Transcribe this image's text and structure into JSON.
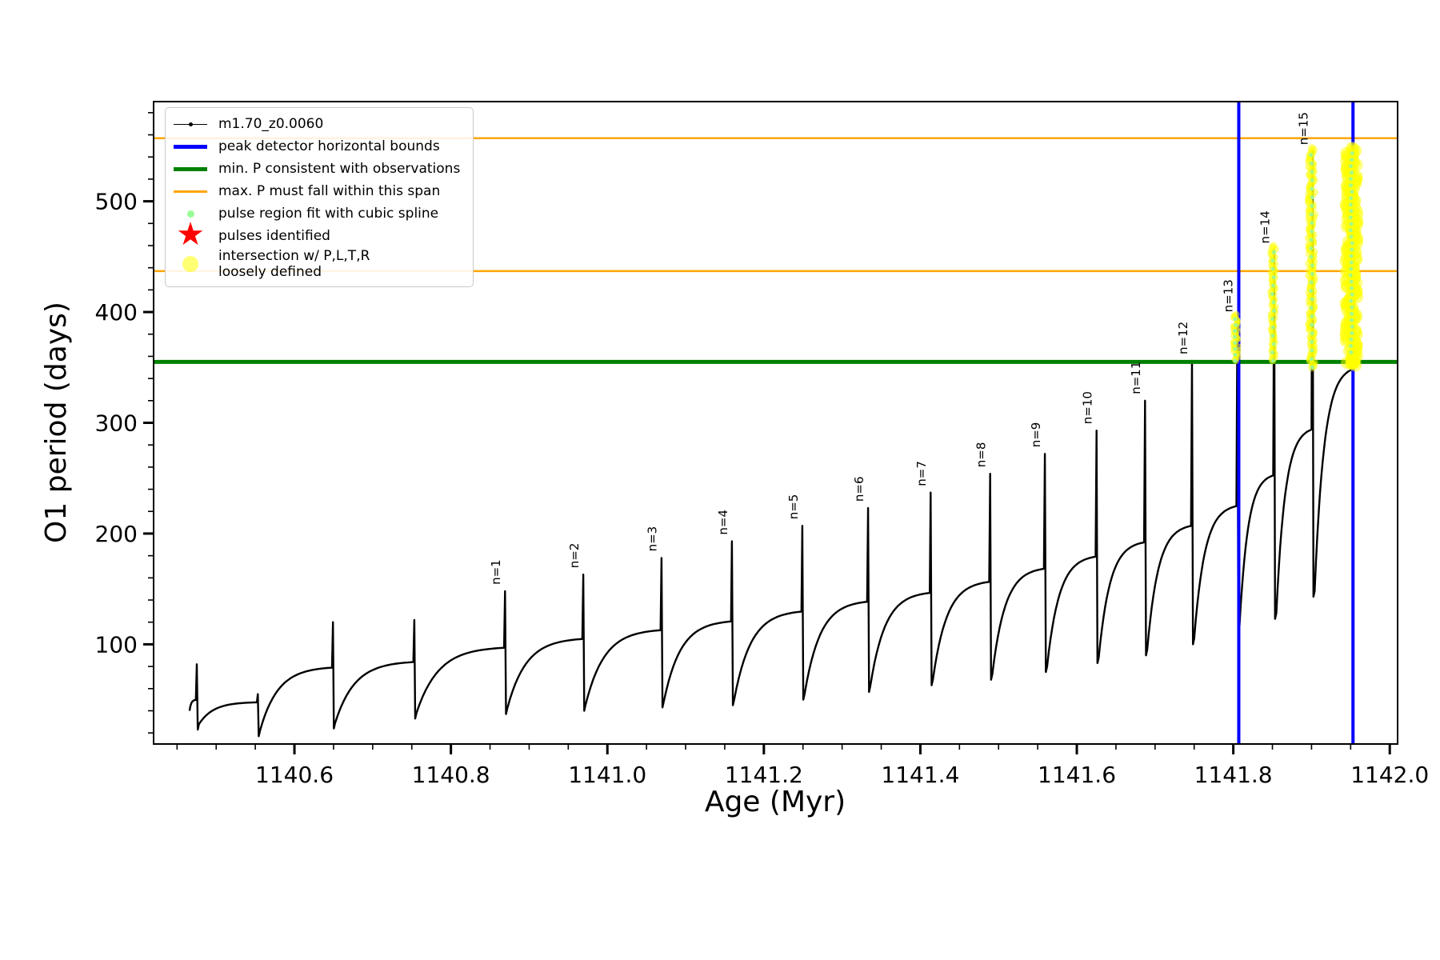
{
  "figure": {
    "background": "#ffffff"
  },
  "chart_data": {
    "type": "line",
    "title": "",
    "xlabel": "Age (Myr)",
    "ylabel": "O1 period (days)",
    "xlim": [
      1140.42,
      1142.01
    ],
    "ylim": [
      10,
      590
    ],
    "x_major_ticks": [
      1140.6,
      1140.8,
      1141.0,
      1141.2,
      1141.4,
      1141.6,
      1141.8,
      1142.0
    ],
    "x_tick_labels": [
      "1140.6",
      "1140.8",
      "1141.0",
      "1141.2",
      "1141.4",
      "1141.6",
      "1141.8",
      "1142.0"
    ],
    "x_minor_step": 0.05,
    "y_major_ticks": [
      100,
      200,
      300,
      400,
      500
    ],
    "y_tick_labels": [
      "100",
      "200",
      "300",
      "400",
      "500"
    ],
    "y_minor_step": 20,
    "grid": false,
    "legend_position": "upper-left",
    "series": [
      {
        "name": "m1.70_z0.0060",
        "color": "#000000",
        "style": "line-with-dot-markers",
        "cycles": [
          {
            "label": null,
            "x0": 1140.466,
            "y0": 40,
            "x1": 1140.474,
            "plateau": 50,
            "peak": 82
          },
          {
            "label": null,
            "x0": 1140.478,
            "y0": 28,
            "x1": 1140.552,
            "plateau": 48,
            "peak": 55
          },
          {
            "label": null,
            "x0": 1140.556,
            "y0": 22,
            "x1": 1140.648,
            "plateau": 80,
            "peak": 120
          },
          {
            "label": null,
            "x0": 1140.652,
            "y0": 29,
            "x1": 1140.752,
            "plateau": 85,
            "peak": 122
          },
          {
            "label": "n=1",
            "x0": 1140.756,
            "y0": 38,
            "x1": 1140.868,
            "plateau": 98,
            "peak": 148
          },
          {
            "label": "n=2",
            "x0": 1140.872,
            "y0": 42,
            "x1": 1140.968,
            "plateau": 106,
            "peak": 163
          },
          {
            "label": "n=3",
            "x0": 1140.972,
            "y0": 45,
            "x1": 1141.068,
            "plateau": 114,
            "peak": 178
          },
          {
            "label": "n=4",
            "x0": 1141.072,
            "y0": 48,
            "x1": 1141.158,
            "plateau": 122,
            "peak": 193
          },
          {
            "label": "n=5",
            "x0": 1141.162,
            "y0": 50,
            "x1": 1141.248,
            "plateau": 131,
            "peak": 207
          },
          {
            "label": "n=6",
            "x0": 1141.252,
            "y0": 55,
            "x1": 1141.332,
            "plateau": 140,
            "peak": 223
          },
          {
            "label": "n=7",
            "x0": 1141.336,
            "y0": 62,
            "x1": 1141.412,
            "plateau": 148,
            "peak": 237
          },
          {
            "label": "n=8",
            "x0": 1141.416,
            "y0": 68,
            "x1": 1141.488,
            "plateau": 158,
            "peak": 254
          },
          {
            "label": "n=9",
            "x0": 1141.492,
            "y0": 73,
            "x1": 1141.558,
            "plateau": 170,
            "peak": 272
          },
          {
            "label": "n=10",
            "x0": 1141.562,
            "y0": 80,
            "x1": 1141.624,
            "plateau": 181,
            "peak": 293
          },
          {
            "label": "n=11",
            "x0": 1141.628,
            "y0": 88,
            "x1": 1141.686,
            "plateau": 194,
            "peak": 320
          },
          {
            "label": "n=12",
            "x0": 1141.69,
            "y0": 95,
            "x1": 1141.746,
            "plateau": 209,
            "peak": 356
          },
          {
            "label": "n=13",
            "x0": 1141.75,
            "y0": 105,
            "x1": 1141.804,
            "plateau": 227,
            "peak": 394
          },
          {
            "label": "n=14",
            "x0": 1141.808,
            "y0": 117,
            "x1": 1141.851,
            "plateau": 255,
            "peak": 456
          },
          {
            "label": "n=15",
            "x0": 1141.855,
            "y0": 128,
            "x1": 1141.9,
            "plateau": 297,
            "peak": 545
          },
          {
            "label": null,
            "x0": 1141.904,
            "y0": 148,
            "x1": 1141.952,
            "plateau": 352,
            "peak": null
          }
        ]
      }
    ],
    "vlines": {
      "label": "peak detector horizontal bounds",
      "color": "#0000ff",
      "width": 4,
      "x": [
        1141.807,
        1141.953
      ]
    },
    "hlines": [
      {
        "label": "min. P consistent with observations",
        "color": "#008000",
        "width": 5,
        "y": 355
      },
      {
        "label": "max. P must fall within this span",
        "color": "#ffa500",
        "width": 2.5,
        "y": 437
      },
      {
        "label": "max. P must fall within this span",
        "color": "#ffa500",
        "width": 2.5,
        "y": 557
      }
    ],
    "intersection_streaks": {
      "label": "intersection w/ P,L,T,R loosely defined",
      "color": "#ffff00",
      "opacity": 0.5,
      "columns": [
        {
          "x": 1141.803,
          "y0": 356,
          "y1": 398,
          "r": 4,
          "count": 40,
          "jitter": 3
        },
        {
          "x": 1141.851,
          "y0": 356,
          "y1": 460,
          "r": 4.5,
          "count": 70,
          "jitter": 3
        },
        {
          "x": 1141.9,
          "y0": 350,
          "y1": 548,
          "r": 5,
          "count": 130,
          "jitter": 3.5
        },
        {
          "x": 1141.951,
          "y0": 352,
          "y1": 548,
          "r": 8,
          "count": 170,
          "jitter": 7
        }
      ]
    },
    "spline_dots": {
      "label": "pulse region fit with cubic spline",
      "color": "#98fb98",
      "r": 2.5
    },
    "highlight_point": {
      "x": 1141.953,
      "y": 355,
      "r": 9,
      "color": "#ffff00"
    }
  },
  "legend": {
    "items": [
      {
        "label": "m1.70_z0.0060",
        "marker": "black-line-dot"
      },
      {
        "label": "peak detector horizontal bounds",
        "marker": "blue-line"
      },
      {
        "label": "min. P consistent with observations",
        "marker": "green-line"
      },
      {
        "label": "max. P must fall within this span",
        "marker": "orange-line"
      },
      {
        "label": "pulse region fit with cubic spline",
        "marker": "palegreen-dot"
      },
      {
        "label": "pulses identified",
        "marker": "red-star"
      },
      {
        "label": "intersection w/ P,L,T,R\nloosely defined",
        "marker": "yellow-dot"
      }
    ]
  }
}
